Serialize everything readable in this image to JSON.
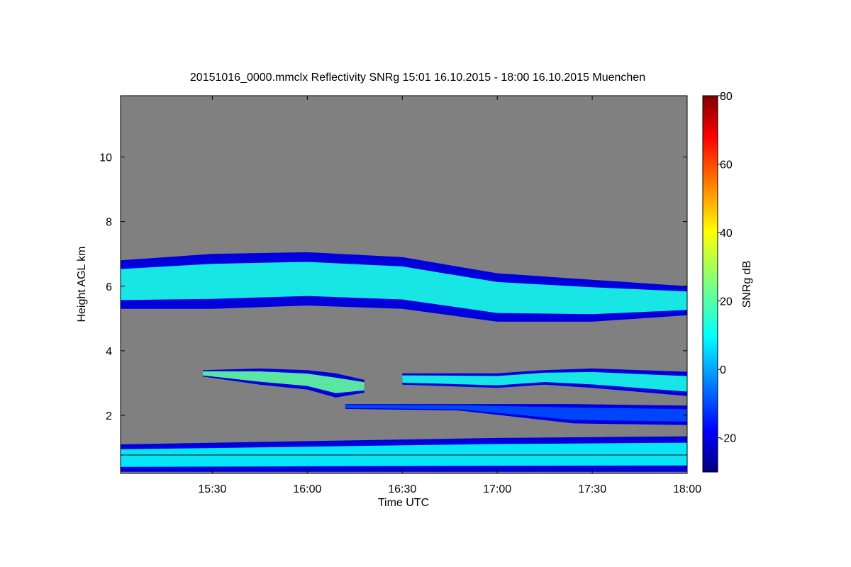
{
  "chart_data": {
    "type": "heatmap",
    "title": "20151016_0000.mmclx Reflectivity SNRg   15:01 16.10.2015 - 18:00 16.10.2015 Muenchen",
    "xlabel": "Time UTC",
    "ylabel": "Height AGL km",
    "colorbar_label": "SNRg dB",
    "xlim": [
      15.0167,
      18.0
    ],
    "ylim": [
      0.2,
      11.9
    ],
    "x_ticks": [
      15.5,
      16.0,
      16.5,
      17.0,
      17.5,
      18.0
    ],
    "x_tick_labels": [
      "15:30",
      "16:00",
      "16:30",
      "17:00",
      "17:30",
      "18:00"
    ],
    "y_ticks": [
      2,
      4,
      6,
      8,
      10
    ],
    "y_tick_labels": [
      "2",
      "4",
      "6",
      "8",
      "10"
    ],
    "clim": [
      -30,
      80
    ],
    "c_ticks": [
      -20,
      0,
      20,
      40,
      60,
      80
    ],
    "c_tick_labels": [
      "-20",
      "0",
      "20",
      "40",
      "60",
      "80"
    ],
    "background_color": "#808080",
    "layers": [
      {
        "name": "cirrus-layer",
        "t": [
          15.0167,
          15.5,
          16.0,
          16.5,
          17.0,
          17.5,
          18.0
        ],
        "bottom": [
          5.3,
          5.3,
          5.4,
          5.3,
          4.9,
          4.9,
          5.1
        ],
        "top": [
          6.8,
          7.0,
          7.05,
          6.9,
          6.4,
          6.2,
          6.0
        ],
        "peak_db": 14
      },
      {
        "name": "mid-layer-1",
        "t": [
          15.45,
          15.75,
          16.0,
          16.15,
          16.3
        ],
        "bottom": [
          3.2,
          2.95,
          2.8,
          2.55,
          2.7
        ],
        "top": [
          3.4,
          3.45,
          3.4,
          3.3,
          3.1
        ],
        "peak_db": 22
      },
      {
        "name": "mid-layer-2",
        "t": [
          16.5,
          17.0,
          17.25,
          17.5,
          18.0
        ],
        "bottom": [
          2.95,
          2.85,
          2.95,
          2.85,
          2.6
        ],
        "top": [
          3.3,
          3.3,
          3.4,
          3.45,
          3.35
        ],
        "peak_db": 14
      },
      {
        "name": "thin-layer",
        "t": [
          16.2,
          16.8,
          17.4,
          18.0
        ],
        "bottom": [
          2.2,
          2.15,
          1.75,
          1.7
        ],
        "top": [
          2.35,
          2.35,
          2.35,
          2.3
        ],
        "peak_db": -8
      },
      {
        "name": "boundary-layer",
        "t": [
          15.0167,
          16.0,
          17.0,
          18.0
        ],
        "bottom": [
          0.25,
          0.25,
          0.25,
          0.25
        ],
        "top": [
          1.1,
          1.2,
          1.3,
          1.35
        ],
        "peak_db": 12
      }
    ]
  }
}
